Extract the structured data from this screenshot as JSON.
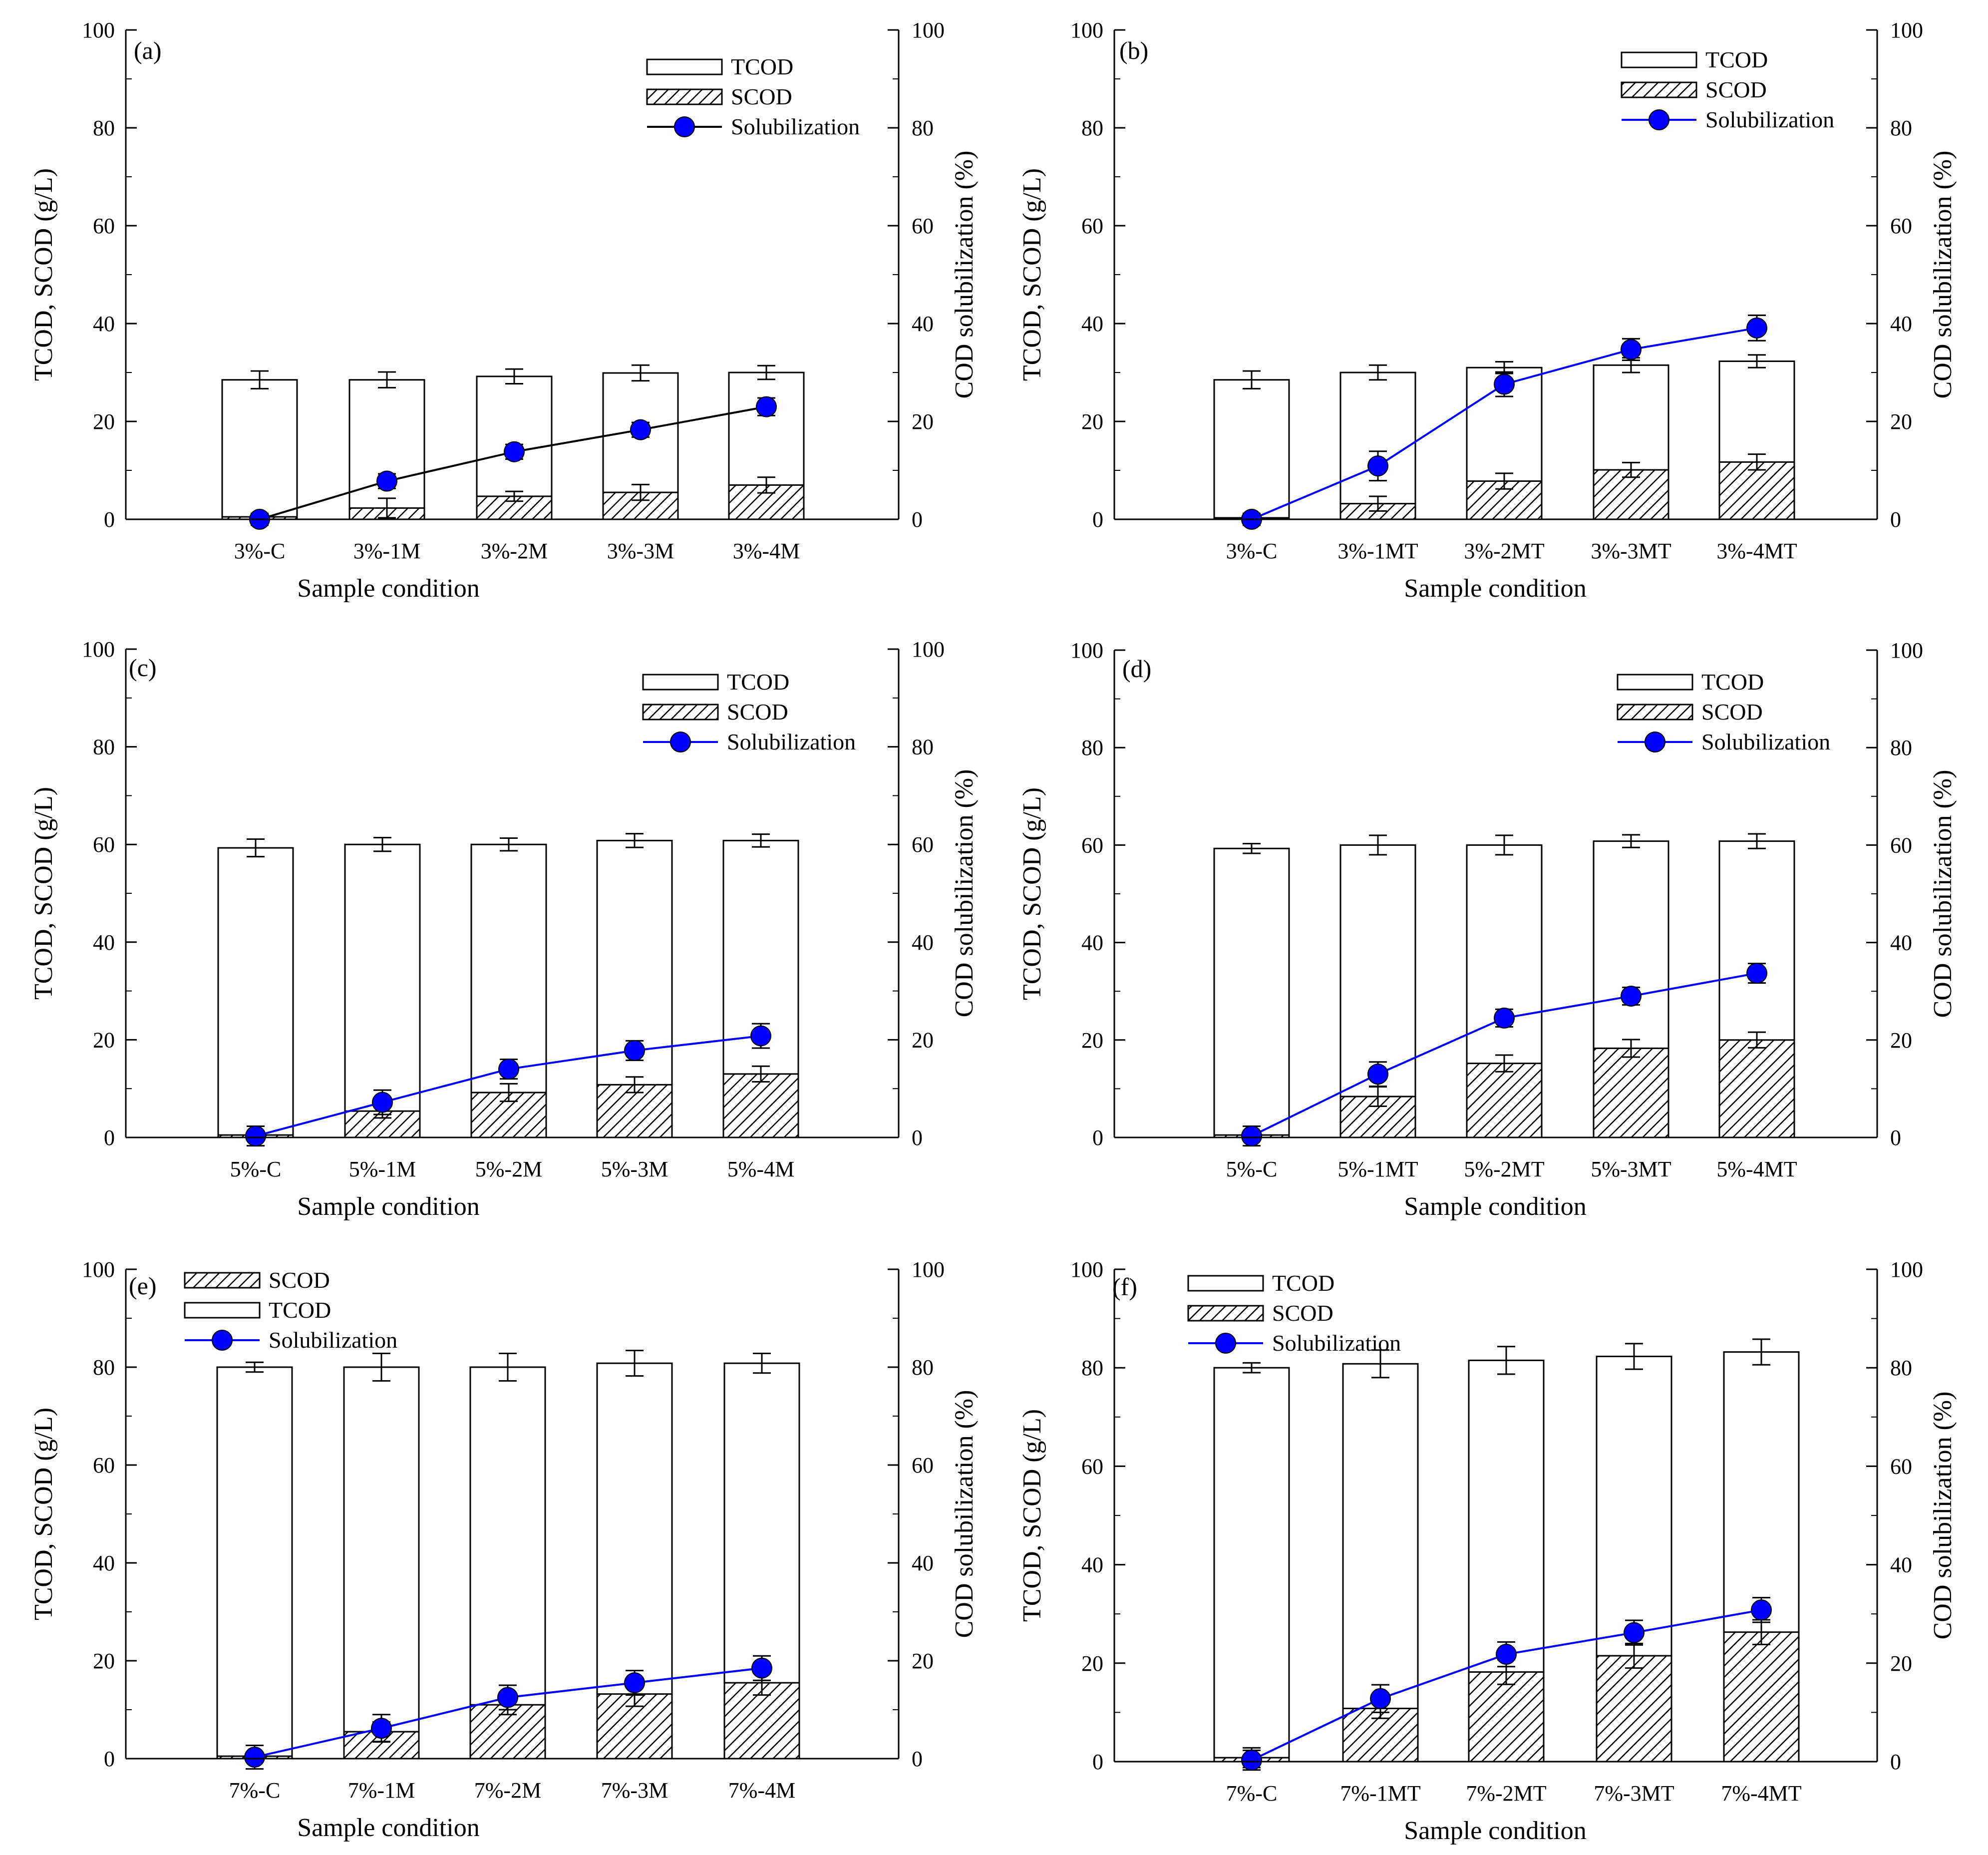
{
  "colors": {
    "axis": "#000000",
    "bar_fill": "#ffffff",
    "hatch": "#000000",
    "line_black": "#000000",
    "line_blue": "#0000ff",
    "marker": "#0000ff"
  },
  "chart_data": [
    {
      "panel_label": "(a)",
      "type": "bar+line",
      "xlabel": "Sample condition",
      "ylabel": "TCOD, SCOD (g/L)",
      "y2label": "COD solubilization (%)",
      "ylim": [
        0,
        100
      ],
      "y2lim": [
        0,
        100
      ],
      "yticks": [
        "0",
        "20",
        "40",
        "60",
        "80",
        "100"
      ],
      "y2ticks": [
        "0",
        "20",
        "40",
        "60",
        "80",
        "100"
      ],
      "categories": [
        "3%-C",
        "3%-1M",
        "3%-2M",
        "3%-3M",
        "3%-4M"
      ],
      "tcod": [
        28.5,
        28.5,
        29.2,
        29.9,
        30.0
      ],
      "tcod_err": [
        1.8,
        1.6,
        1.5,
        1.6,
        1.4
      ],
      "scod": [
        0.5,
        2.3,
        4.7,
        5.5,
        7.0
      ],
      "scod_err": [
        0.5,
        2.0,
        1.0,
        1.6,
        1.6
      ],
      "solubilization": [
        0,
        7.8,
        13.8,
        18.3,
        23.0
      ],
      "solubilization_err": [
        1.2,
        1.5,
        1.5,
        1.5,
        1.8
      ],
      "legend": [
        "TCOD",
        "SCOD",
        "Solubilization"
      ],
      "line_color": "black"
    },
    {
      "panel_label": "(b)",
      "type": "bar+line",
      "xlabel": "Sample condition",
      "ylabel": "TCOD, SCOD (g/L)",
      "y2label": "COD solubilization (%)",
      "ylim": [
        0,
        100
      ],
      "y2lim": [
        0,
        100
      ],
      "yticks": [
        "0",
        "20",
        "40",
        "60",
        "80",
        "100"
      ],
      "y2ticks": [
        "0",
        "20",
        "40",
        "60",
        "80",
        "100"
      ],
      "categories": [
        "3%-C",
        "3%-1MT",
        "3%-2MT",
        "3%-3MT",
        "3%-4MT"
      ],
      "tcod": [
        28.5,
        30.0,
        31.0,
        31.5,
        32.3
      ],
      "tcod_err": [
        1.8,
        1.5,
        1.2,
        1.5,
        1.3
      ],
      "scod": [
        0.3,
        3.2,
        7.8,
        10.1,
        11.7
      ],
      "scod_err": [
        0.5,
        1.5,
        1.6,
        1.5,
        1.6
      ],
      "solubilization": [
        0,
        10.9,
        27.6,
        34.7,
        39.1
      ],
      "solubilization_err": [
        1.2,
        3.0,
        2.5,
        2.2,
        2.6
      ],
      "legend": [
        "TCOD",
        "SCOD",
        "Solubilization"
      ],
      "line_color": "blue"
    },
    {
      "panel_label": "(c)",
      "type": "bar+line",
      "xlabel": "Sample condition",
      "ylabel": "TCOD, SCOD (g/L)",
      "y2label": "COD solubilization (%)",
      "ylim": [
        0,
        100
      ],
      "y2lim": [
        0,
        100
      ],
      "yticks": [
        "0",
        "20",
        "40",
        "60",
        "80",
        "100"
      ],
      "y2ticks": [
        "0",
        "20",
        "40",
        "60",
        "80",
        "100"
      ],
      "categories": [
        "5%-C",
        "5%-1M",
        "5%-2M",
        "5%-3M",
        "5%-4M"
      ],
      "tcod": [
        59.3,
        60.0,
        60.0,
        60.8,
        60.8
      ],
      "tcod_err": [
        1.8,
        1.4,
        1.3,
        1.4,
        1.3
      ],
      "scod": [
        0.5,
        5.4,
        9.2,
        10.8,
        13.0
      ],
      "scod_err": [
        0.4,
        1.4,
        1.8,
        1.6,
        1.6
      ],
      "solubilization": [
        0.3,
        7.2,
        14.0,
        17.8,
        20.8
      ],
      "solubilization_err": [
        2.0,
        2.5,
        2.0,
        2.0,
        2.5
      ],
      "legend": [
        "TCOD",
        "SCOD",
        "Solubilization"
      ],
      "line_color": "blue"
    },
    {
      "panel_label": "(d)",
      "type": "bar+line",
      "xlabel": "Sample condition",
      "ylabel": "TCOD, SCOD (g/L)",
      "y2label": "COD solubilization (%)",
      "ylim": [
        0,
        100
      ],
      "y2lim": [
        0,
        100
      ],
      "yticks": [
        "0",
        "20",
        "40",
        "60",
        "80",
        "100"
      ],
      "y2ticks": [
        "0",
        "20",
        "40",
        "60",
        "80",
        "100"
      ],
      "categories": [
        "5%-C",
        "5%-1MT",
        "5%-2MT",
        "5%-3MT",
        "5%-4MT"
      ],
      "tcod": [
        59.3,
        60.0,
        60.0,
        60.8,
        60.8
      ],
      "tcod_err": [
        1.0,
        2.0,
        2.0,
        1.3,
        1.5
      ],
      "scod": [
        0.5,
        8.4,
        15.2,
        18.3,
        20.0
      ],
      "scod_err": [
        0.5,
        2.0,
        1.7,
        1.8,
        1.6
      ],
      "solubilization": [
        0.3,
        13.0,
        24.5,
        29.0,
        33.7
      ],
      "solubilization_err": [
        2.0,
        2.5,
        1.8,
        1.8,
        2.0
      ],
      "legend": [
        "TCOD",
        "SCOD",
        "Solubilization"
      ],
      "line_color": "blue"
    },
    {
      "panel_label": "(e)",
      "type": "bar+line",
      "xlabel": "Sample condition",
      "ylabel": "TCOD, SCOD (g/L)",
      "y2label": "COD solubilization (%)",
      "ylim": [
        0,
        100
      ],
      "y2lim": [
        0,
        100
      ],
      "yticks": [
        "0",
        "20",
        "40",
        "60",
        "80",
        "100"
      ],
      "y2ticks": [
        "0",
        "20",
        "40",
        "60",
        "80",
        "100"
      ],
      "categories": [
        "7%-C",
        "7%-1M",
        "7%-2M",
        "7%-3M",
        "7%-4M"
      ],
      "tcod": [
        80.0,
        80.0,
        80.0,
        80.8,
        80.8
      ],
      "tcod_err": [
        1.0,
        2.8,
        2.8,
        2.6,
        2.0
      ],
      "scod": [
        0.5,
        5.5,
        11.0,
        13.2,
        15.5
      ],
      "scod_err": [
        0.3,
        2.0,
        2.0,
        2.5,
        2.5
      ],
      "solubilization": [
        0.3,
        6.2,
        12.5,
        15.5,
        18.5
      ],
      "solubilization_err": [
        2.4,
        2.8,
        2.5,
        2.5,
        2.5
      ],
      "legend": [
        "SCOD",
        "TCOD",
        "Solubilization"
      ],
      "line_color": "blue"
    },
    {
      "panel_label": "(f)",
      "type": "bar+line",
      "xlabel": "Sample condition",
      "ylabel": "TCOD, SCOD (g/L)",
      "y2label": "COD solubilization (%)",
      "ylim": [
        0,
        100
      ],
      "y2lim": [
        0,
        100
      ],
      "yticks": [
        "0",
        "20",
        "40",
        "60",
        "80",
        "100"
      ],
      "y2ticks": [
        "0",
        "20",
        "40",
        "60",
        "80",
        "100"
      ],
      "categories": [
        "7%-C",
        "7%-1MT",
        "7%-2MT",
        "7%-3MT",
        "7%-4MT"
      ],
      "tcod": [
        80.0,
        80.8,
        81.5,
        82.3,
        83.2
      ],
      "tcod_err": [
        1.0,
        2.8,
        2.8,
        2.6,
        2.6
      ],
      "scod": [
        0.8,
        10.8,
        18.2,
        21.5,
        26.3
      ],
      "scod_err": [
        2.0,
        2.0,
        2.5,
        2.5,
        2.5
      ],
      "solubilization": [
        0.3,
        12.8,
        21.8,
        26.2,
        30.8
      ],
      "solubilization_err": [
        2.0,
        2.8,
        2.5,
        2.5,
        2.5
      ],
      "legend": [
        "TCOD",
        "SCOD",
        "Solubilization"
      ],
      "line_color": "blue"
    }
  ]
}
